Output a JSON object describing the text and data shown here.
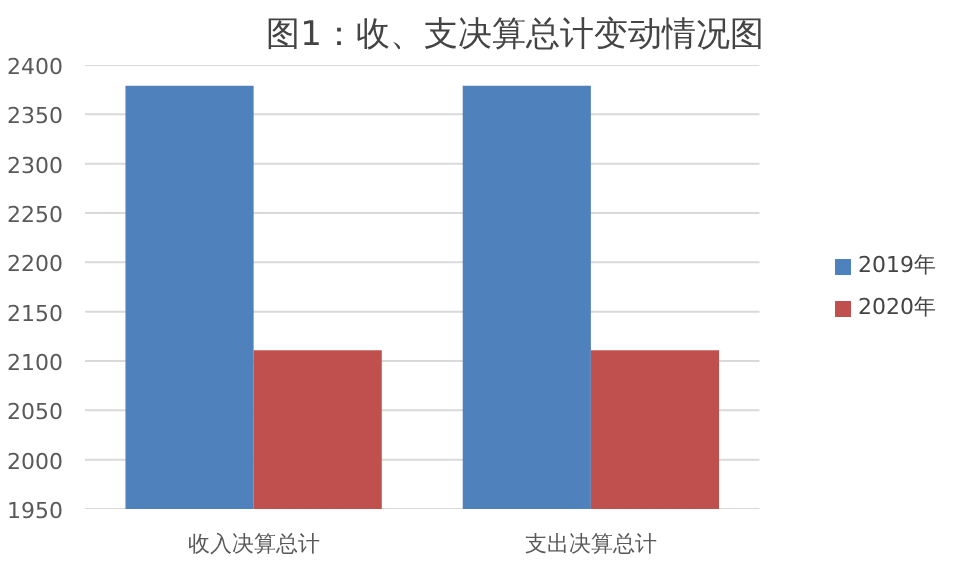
{
  "chart_data": {
    "type": "bar",
    "title": "图1：收、支决算总计变动情况图",
    "categories": [
      "收入决算总计",
      "支出决算总计"
    ],
    "series": [
      {
        "name": "2019年",
        "color": "#4f81bd",
        "values": [
          2379,
          2379
        ]
      },
      {
        "name": "2020年",
        "color": "#c0504d",
        "values": [
          2111,
          2111
        ]
      }
    ],
    "ylim": [
      1950,
      2400
    ],
    "yticks": [
      1950,
      2000,
      2050,
      2100,
      2150,
      2200,
      2250,
      2300,
      2350,
      2400
    ],
    "grid": "y",
    "legend": "right"
  }
}
